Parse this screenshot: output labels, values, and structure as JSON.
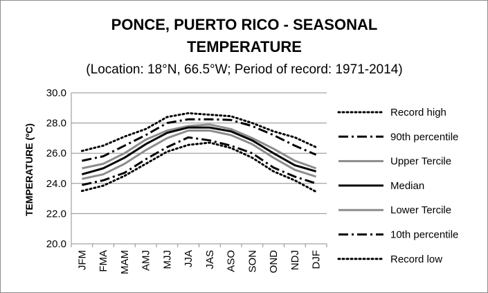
{
  "chart_data": {
    "type": "line",
    "title_line1": "PONCE, PUERTO RICO - SEASONAL",
    "title_line2": "TEMPERATURE",
    "subtitle": "(Location: 18°N, 66.5°W; Period of record: 1971-2014)",
    "ylabel": "TEMPERATURE (ºC)",
    "xlabel": "",
    "ylim": [
      20.0,
      30.0
    ],
    "yticks": [
      "20.0",
      "22.0",
      "24.0",
      "26.0",
      "28.0",
      "30.0"
    ],
    "categories": [
      "JFM",
      "FMA",
      "MAM",
      "AMJ",
      "MJJ",
      "JJA",
      "JAS",
      "ASO",
      "SON",
      "OND",
      "NDJ",
      "DJF"
    ],
    "legend_position": "right",
    "grid": "horizontal",
    "series": [
      {
        "name": "Record high",
        "color": "#000000",
        "style": "dotted",
        "values": [
          26.15,
          26.5,
          27.1,
          27.6,
          28.4,
          28.65,
          28.55,
          28.45,
          28.0,
          27.45,
          27.05,
          26.4
        ]
      },
      {
        "name": "90th percentile",
        "color": "#000000",
        "style": "dashdot",
        "values": [
          25.5,
          25.8,
          26.5,
          27.2,
          28.0,
          28.25,
          28.25,
          28.2,
          27.8,
          27.2,
          26.5,
          25.9
        ]
      },
      {
        "name": "Upper Tercile",
        "color": "#8c8c8c",
        "style": "solid",
        "values": [
          25.0,
          25.3,
          26.0,
          26.9,
          27.5,
          27.8,
          27.9,
          27.6,
          27.0,
          26.3,
          25.5,
          25.0
        ]
      },
      {
        "name": "Median",
        "color": "#000000",
        "style": "solid",
        "values": [
          24.6,
          25.0,
          25.7,
          26.6,
          27.35,
          27.7,
          27.7,
          27.45,
          26.85,
          26.0,
          25.2,
          24.8
        ]
      },
      {
        "name": "Lower Tercile",
        "color": "#8c8c8c",
        "style": "solid",
        "values": [
          24.3,
          24.6,
          25.3,
          26.2,
          27.0,
          27.5,
          27.5,
          27.2,
          26.6,
          25.7,
          24.9,
          24.45
        ]
      },
      {
        "name": "10th percentile",
        "color": "#000000",
        "style": "dashdot",
        "values": [
          23.9,
          24.2,
          24.7,
          25.6,
          26.4,
          27.05,
          26.85,
          26.5,
          26.0,
          25.05,
          24.45,
          24.0
        ]
      },
      {
        "name": "Record low",
        "color": "#000000",
        "style": "dotted",
        "values": [
          23.5,
          23.85,
          24.5,
          25.3,
          26.1,
          26.55,
          26.7,
          26.35,
          25.7,
          24.8,
          24.2,
          23.45
        ]
      }
    ]
  }
}
